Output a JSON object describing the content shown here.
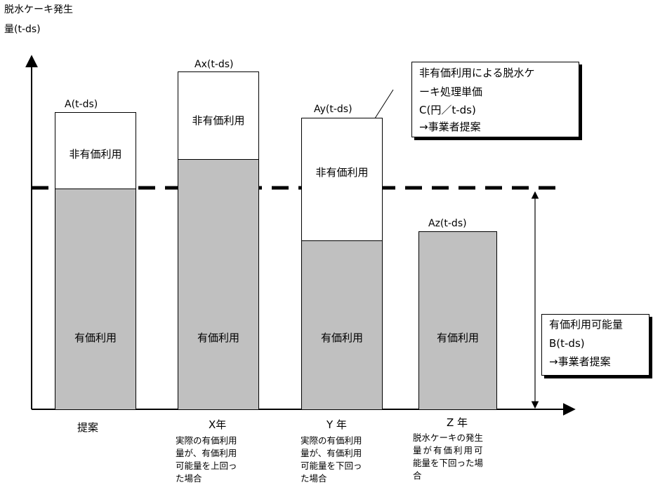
{
  "y_axis_label": [
    "脱水ケーキ発生",
    "量(t-ds)"
  ],
  "bars": [
    {
      "id": "proposal",
      "total_label": "A(t-ds)",
      "top_label": "非有価利用",
      "bottom_label": "有価利用",
      "x_label": "提案",
      "caption": []
    },
    {
      "id": "x-year",
      "total_label": "Ax(t-ds)",
      "top_label": "非有価利用",
      "bottom_label": "有価利用",
      "x_label": "X年",
      "caption": [
        "実際の有価利用",
        "量が、有価利用",
        "可能量を上回っ",
        "た場合"
      ]
    },
    {
      "id": "y-year",
      "total_label": "Ay(t-ds)",
      "top_label": "非有価利用",
      "bottom_label": "有価利用",
      "x_label": "Y 年",
      "caption": [
        "実際の有価利用",
        "量が、有価利用",
        "可能量を下回っ",
        "た場合"
      ]
    },
    {
      "id": "z-year",
      "total_label": "Az(t-ds)",
      "top_label": "",
      "bottom_label": "有価利用",
      "x_label": "Z 年",
      "caption": [
        "脱水ケーキの発生",
        "量が有価利用可",
        "能量を下回った場",
        "合"
      ]
    }
  ],
  "callout_unit_price": [
    "非有価利用による脱水ケ",
    "ーキ処理単価",
    "C(円／t-ds)",
    "→事業者提案"
  ],
  "callout_capacity": [
    "有価利用可能量",
    "B(t-ds)",
    "→事業者提案"
  ]
}
